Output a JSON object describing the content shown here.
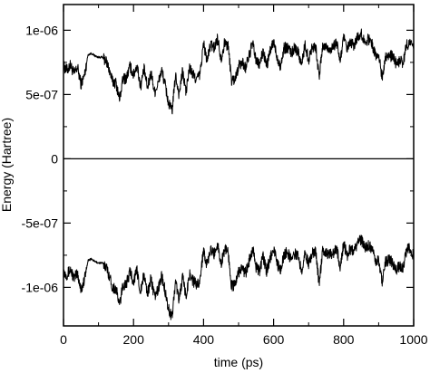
{
  "chart_data": {
    "type": "line",
    "title": "",
    "xlabel": "time (ps)",
    "ylabel": "Energy (Hartree)",
    "xlim": [
      0,
      1000
    ],
    "ylim": [
      -1.3e-06,
      1.2e-06
    ],
    "grid": false,
    "legend": "none",
    "x_ticks": [
      0,
      200,
      400,
      600,
      800,
      1000
    ],
    "x_tick_labels": [
      "0",
      "200",
      "400",
      "600",
      "800",
      "1000"
    ],
    "y_ticks": [
      -1e-06,
      -5e-07,
      0,
      5e-07,
      1e-06
    ],
    "y_tick_labels": [
      "-1e-06",
      "-5e-07",
      "0",
      "5e-07",
      "1e-06"
    ],
    "reference_line_y": 0,
    "series": [
      {
        "color": "#000000",
        "x": [
          0,
          10,
          20,
          30,
          40,
          50,
          60,
          70,
          80,
          90,
          100,
          110,
          120,
          130,
          140,
          150,
          160,
          170,
          180,
          190,
          200,
          210,
          220,
          230,
          240,
          250,
          260,
          270,
          280,
          290,
          300,
          310,
          320,
          330,
          340,
          350,
          360,
          370,
          380,
          390,
          400,
          410,
          420,
          430,
          440,
          450,
          460,
          470,
          480,
          490,
          500,
          510,
          520,
          530,
          540,
          550,
          560,
          570,
          580,
          590,
          600,
          610,
          620,
          630,
          640,
          650,
          660,
          670,
          680,
          690,
          700,
          710,
          720,
          730,
          740,
          750,
          760,
          770,
          780,
          790,
          800,
          810,
          820,
          830,
          840,
          850,
          860,
          870,
          880,
          890,
          900,
          910,
          920,
          930,
          940,
          950,
          960,
          970,
          980,
          990,
          1000
        ],
        "y": [
          7.2e-07,
          6.9e-07,
          7.3e-07,
          6.6e-07,
          7.1e-07,
          5.8e-07,
          6.5e-07,
          8.1e-07,
          8.2e-07,
          8e-07,
          7.9e-07,
          7.9e-07,
          7.7e-07,
          7e-07,
          6e-07,
          5.9e-07,
          4.6e-07,
          6.2e-07,
          6.3e-07,
          7.2e-07,
          6.5e-07,
          7.3e-07,
          5.6e-07,
          7e-07,
          5.5e-07,
          6.7e-07,
          5.2e-07,
          5.8e-07,
          6.9e-07,
          5.8e-07,
          4.3e-07,
          3.7e-07,
          6.5e-07,
          5e-07,
          6.8e-07,
          5.2e-07,
          7.1e-07,
          6.5e-07,
          6.2e-07,
          6.6e-07,
          9e-07,
          7.6e-07,
          8.9e-07,
          8.6e-07,
          9.4e-07,
          7.8e-07,
          9e-07,
          8.8e-07,
          6.1e-07,
          6.2e-07,
          7.2e-07,
          7.5e-07,
          7.1e-07,
          8e-07,
          9e-07,
          7.6e-07,
          7.3e-07,
          8.4e-07,
          7.2e-07,
          8.3e-07,
          9.1e-07,
          7.9e-07,
          7.2e-07,
          8.6e-07,
          8.7e-07,
          8.2e-07,
          8.6e-07,
          8.4e-07,
          7.3e-07,
          8.9e-07,
          7.7e-07,
          8.7e-07,
          8.8e-07,
          6.3e-07,
          8.8e-07,
          8.7e-07,
          8.5e-07,
          8.7e-07,
          9e-07,
          7.6e-07,
          9.4e-07,
          8.5e-07,
          9e-07,
          8.8e-07,
          9.5e-07,
          9.7e-07,
          9.1e-07,
          9.3e-07,
          9.1e-07,
          8.1e-07,
          8e-07,
          6.4e-07,
          8e-07,
          8.1e-07,
          7.9e-07,
          7.4e-07,
          7.6e-07,
          7.5e-07,
          8.9e-07,
          9e-07,
          8.5e-07
        ]
      },
      {
        "color": "#000000",
        "x": [
          0,
          10,
          20,
          30,
          40,
          50,
          60,
          70,
          80,
          90,
          100,
          110,
          120,
          130,
          140,
          150,
          160,
          170,
          180,
          190,
          200,
          210,
          220,
          230,
          240,
          250,
          260,
          270,
          280,
          290,
          300,
          310,
          320,
          330,
          340,
          350,
          360,
          370,
          380,
          390,
          400,
          410,
          420,
          430,
          440,
          450,
          460,
          470,
          480,
          490,
          500,
          510,
          520,
          530,
          540,
          550,
          560,
          570,
          580,
          590,
          600,
          610,
          620,
          630,
          640,
          650,
          660,
          670,
          680,
          690,
          700,
          710,
          720,
          730,
          740,
          750,
          760,
          770,
          780,
          790,
          800,
          810,
          820,
          830,
          840,
          850,
          860,
          870,
          880,
          890,
          900,
          910,
          920,
          930,
          940,
          950,
          960,
          970,
          980,
          990,
          1000
        ],
        "y": [
          -8.8e-07,
          -9e-07,
          -8.6e-07,
          -9.3e-07,
          -8.9e-07,
          -1.02e-06,
          -9.4e-07,
          -7.9e-07,
          -7.8e-07,
          -8e-07,
          -8.1e-07,
          -8.1e-07,
          -8.3e-07,
          -9e-07,
          -1e-06,
          -1.01e-06,
          -1.14e-06,
          -9.8e-07,
          -9.7e-07,
          -8.8e-07,
          -9.5e-07,
          -8.7e-07,
          -1.04e-06,
          -9e-07,
          -1.05e-06,
          -9.3e-07,
          -1.08e-06,
          -1.02e-06,
          -9.1e-07,
          -1.02e-06,
          -1.17e-06,
          -1.23e-06,
          -9.5e-07,
          -1.1e-06,
          -9.2e-07,
          -1.08e-06,
          -8.9e-07,
          -9.5e-07,
          -9.8e-07,
          -9.4e-07,
          -7e-07,
          -8.4e-07,
          -7.1e-07,
          -7.4e-07,
          -6.6e-07,
          -8.2e-07,
          -7e-07,
          -7.2e-07,
          -9.9e-07,
          -9.8e-07,
          -8.8e-07,
          -8.5e-07,
          -8.9e-07,
          -8e-07,
          -7e-07,
          -8.4e-07,
          -8.7e-07,
          -7.6e-07,
          -8.8e-07,
          -7.7e-07,
          -6.9e-07,
          -8.1e-07,
          -8.8e-07,
          -7.4e-07,
          -7.3e-07,
          -7.8e-07,
          -7.4e-07,
          -7.6e-07,
          -8.7e-07,
          -7.1e-07,
          -8.3e-07,
          -7.3e-07,
          -7.2e-07,
          -9.7e-07,
          -7.2e-07,
          -7.3e-07,
          -7.5e-07,
          -7.3e-07,
          -7e-07,
          -8.4e-07,
          -6.6e-07,
          -7.5e-07,
          -7e-07,
          -7.2e-07,
          -6.5e-07,
          -6.3e-07,
          -6.9e-07,
          -6.7e-07,
          -6.9e-07,
          -7.9e-07,
          -8e-07,
          -9.6e-07,
          -8e-07,
          -7.9e-07,
          -8.1e-07,
          -8.6e-07,
          -8.4e-07,
          -8.5e-07,
          -7.1e-07,
          -7e-07,
          -7.5e-07
        ]
      }
    ]
  }
}
